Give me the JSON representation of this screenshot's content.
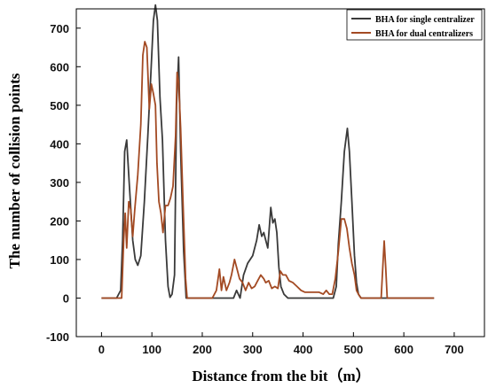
{
  "chart_data": {
    "type": "line",
    "xlabel": "Distance from the bit（m）",
    "ylabel": "The number of collision points",
    "xlim": [
      -50,
      760
    ],
    "ylim": [
      -100,
      750
    ],
    "xticks": [
      0,
      100,
      200,
      300,
      400,
      500,
      600,
      700
    ],
    "yticks": [
      -100,
      0,
      100,
      200,
      300,
      400,
      500,
      600,
      700
    ],
    "grid": false,
    "legend_position": "top-right",
    "series": [
      {
        "name": "BHA for single centralizer",
        "color": "#3a3a3a",
        "points": [
          [
            0,
            0
          ],
          [
            30,
            0
          ],
          [
            38,
            20
          ],
          [
            42,
            150
          ],
          [
            46,
            380
          ],
          [
            50,
            410
          ],
          [
            55,
            300
          ],
          [
            62,
            150
          ],
          [
            67,
            100
          ],
          [
            72,
            85
          ],
          [
            78,
            110
          ],
          [
            85,
            250
          ],
          [
            92,
            420
          ],
          [
            98,
            580
          ],
          [
            103,
            720
          ],
          [
            107,
            760
          ],
          [
            111,
            720
          ],
          [
            116,
            520
          ],
          [
            121,
            410
          ],
          [
            127,
            150
          ],
          [
            132,
            30
          ],
          [
            136,
            2
          ],
          [
            140,
            10
          ],
          [
            145,
            60
          ],
          [
            149,
            500
          ],
          [
            153,
            625
          ],
          [
            157,
            380
          ],
          [
            163,
            120
          ],
          [
            168,
            0
          ],
          [
            175,
            0
          ],
          [
            250,
            0
          ],
          [
            262,
            0
          ],
          [
            268,
            20
          ],
          [
            275,
            0
          ],
          [
            282,
            60
          ],
          [
            290,
            90
          ],
          [
            300,
            110
          ],
          [
            308,
            150
          ],
          [
            313,
            190
          ],
          [
            318,
            160
          ],
          [
            322,
            170
          ],
          [
            326,
            150
          ],
          [
            330,
            130
          ],
          [
            336,
            235
          ],
          [
            340,
            195
          ],
          [
            344,
            205
          ],
          [
            348,
            170
          ],
          [
            352,
            80
          ],
          [
            356,
            30
          ],
          [
            362,
            10
          ],
          [
            370,
            0
          ],
          [
            460,
            0
          ],
          [
            466,
            30
          ],
          [
            470,
            140
          ],
          [
            476,
            250
          ],
          [
            482,
            380
          ],
          [
            488,
            440
          ],
          [
            492,
            380
          ],
          [
            497,
            250
          ],
          [
            502,
            110
          ],
          [
            506,
            40
          ],
          [
            510,
            10
          ],
          [
            515,
            0
          ],
          [
            660,
            0
          ]
        ]
      },
      {
        "name": "BHA for dual centralizers",
        "color": "#a34a23",
        "points": [
          [
            0,
            0
          ],
          [
            40,
            0
          ],
          [
            44,
            150
          ],
          [
            47,
            220
          ],
          [
            50,
            130
          ],
          [
            54,
            250
          ],
          [
            58,
            230
          ],
          [
            62,
            160
          ],
          [
            66,
            230
          ],
          [
            72,
            320
          ],
          [
            78,
            450
          ],
          [
            82,
            630
          ],
          [
            86,
            665
          ],
          [
            90,
            650
          ],
          [
            95,
            490
          ],
          [
            99,
            555
          ],
          [
            103,
            530
          ],
          [
            107,
            500
          ],
          [
            110,
            350
          ],
          [
            114,
            250
          ],
          [
            118,
            220
          ],
          [
            122,
            170
          ],
          [
            127,
            240
          ],
          [
            132,
            240
          ],
          [
            137,
            260
          ],
          [
            142,
            290
          ],
          [
            147,
            420
          ],
          [
            150,
            585
          ],
          [
            153,
            560
          ],
          [
            157,
            440
          ],
          [
            162,
            240
          ],
          [
            167,
            50
          ],
          [
            170,
            0
          ],
          [
            175,
            0
          ],
          [
            220,
            0
          ],
          [
            228,
            20
          ],
          [
            234,
            75
          ],
          [
            238,
            20
          ],
          [
            242,
            55
          ],
          [
            248,
            20
          ],
          [
            254,
            40
          ],
          [
            258,
            60
          ],
          [
            264,
            100
          ],
          [
            268,
            80
          ],
          [
            274,
            50
          ],
          [
            280,
            40
          ],
          [
            286,
            20
          ],
          [
            292,
            40
          ],
          [
            298,
            25
          ],
          [
            304,
            30
          ],
          [
            310,
            45
          ],
          [
            316,
            60
          ],
          [
            322,
            50
          ],
          [
            326,
            40
          ],
          [
            332,
            45
          ],
          [
            338,
            25
          ],
          [
            344,
            30
          ],
          [
            350,
            25
          ],
          [
            355,
            70
          ],
          [
            360,
            60
          ],
          [
            366,
            60
          ],
          [
            372,
            45
          ],
          [
            380,
            40
          ],
          [
            388,
            30
          ],
          [
            396,
            20
          ],
          [
            404,
            15
          ],
          [
            420,
            15
          ],
          [
            432,
            15
          ],
          [
            440,
            10
          ],
          [
            446,
            20
          ],
          [
            452,
            10
          ],
          [
            458,
            10
          ],
          [
            464,
            50
          ],
          [
            470,
            120
          ],
          [
            476,
            205
          ],
          [
            482,
            205
          ],
          [
            487,
            180
          ],
          [
            492,
            130
          ],
          [
            497,
            90
          ],
          [
            502,
            60
          ],
          [
            506,
            20
          ],
          [
            510,
            10
          ],
          [
            515,
            0
          ],
          [
            555,
            0
          ],
          [
            558,
            75
          ],
          [
            561,
            148
          ],
          [
            564,
            80
          ],
          [
            567,
            0
          ],
          [
            660,
            0
          ]
        ]
      }
    ]
  }
}
